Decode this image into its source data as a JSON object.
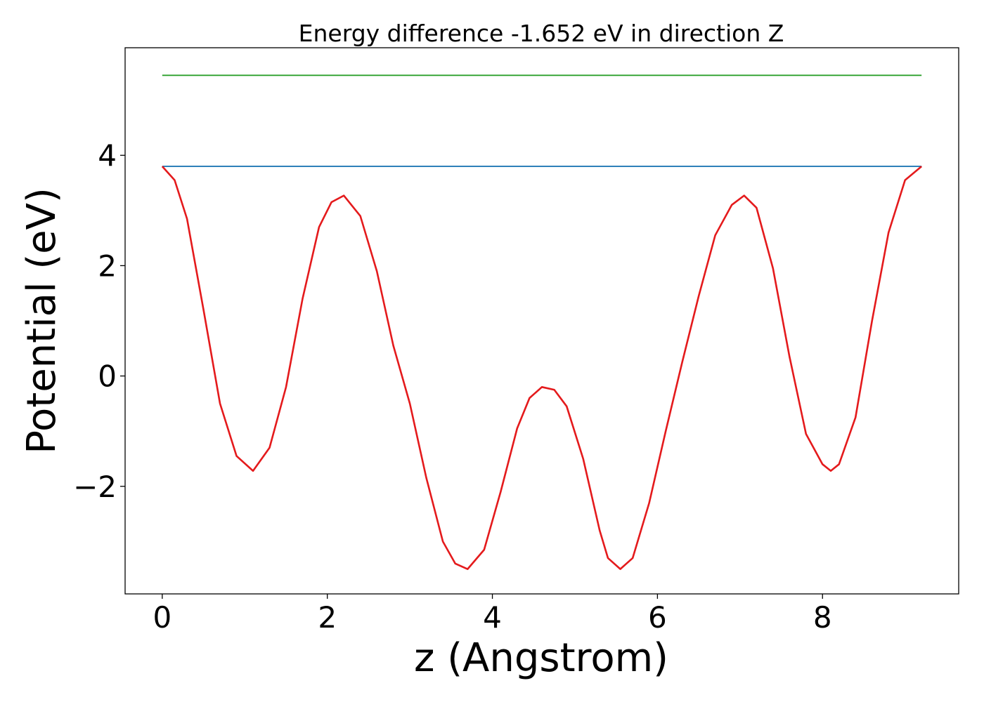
{
  "chart_data": {
    "type": "line",
    "title": "Energy difference -1.652 eV in direction Z",
    "xlabel": "z (Angstrom)",
    "ylabel": "Potential (eV)",
    "xlim": [
      -0.45,
      9.65
    ],
    "ylim": [
      -3.95,
      5.95
    ],
    "xticks": [
      0,
      2,
      4,
      6,
      8
    ],
    "xtick_labels": [
      "0",
      "2",
      "4",
      "6",
      "8"
    ],
    "yticks": [
      -2,
      0,
      2,
      4
    ],
    "ytick_labels": [
      "−2",
      "0",
      "2",
      "4"
    ],
    "grid": false,
    "legend": "none",
    "series": [
      {
        "color": "#2ca02c",
        "x": [
          0,
          9.2
        ],
        "y": [
          5.45,
          5.45
        ]
      },
      {
        "color": "#1f77b4",
        "x": [
          0,
          9.2
        ],
        "y": [
          3.8,
          3.8
        ]
      },
      {
        "color": "#e41a1c",
        "x": [
          0,
          0.15,
          0.3,
          0.5,
          0.7,
          0.9,
          1.1,
          1.3,
          1.5,
          1.7,
          1.9,
          2.05,
          2.2,
          2.4,
          2.6,
          2.8,
          3.0,
          3.2,
          3.4,
          3.55,
          3.7,
          3.9,
          4.1,
          4.3,
          4.45,
          4.6,
          4.75,
          4.9,
          5.1,
          5.3,
          5.4,
          5.55,
          5.7,
          5.9,
          6.1,
          6.3,
          6.5,
          6.7,
          6.9,
          7.05,
          7.2,
          7.4,
          7.6,
          7.8,
          8.0,
          8.1,
          8.2,
          8.4,
          8.6,
          8.8,
          9.0,
          9.2
        ],
        "y": [
          3.8,
          3.55,
          2.85,
          1.2,
          -0.5,
          -1.45,
          -1.72,
          -1.3,
          -0.2,
          1.4,
          2.7,
          3.15,
          3.27,
          2.9,
          1.9,
          0.55,
          -0.5,
          -1.85,
          -3.0,
          -3.4,
          -3.5,
          -3.15,
          -2.1,
          -0.95,
          -0.4,
          -0.2,
          -0.25,
          -0.55,
          -1.5,
          -2.8,
          -3.3,
          -3.5,
          -3.3,
          -2.3,
          -1.0,
          0.25,
          1.45,
          2.55,
          3.1,
          3.27,
          3.05,
          1.95,
          0.35,
          -1.05,
          -1.6,
          -1.72,
          -1.6,
          -0.75,
          1.0,
          2.6,
          3.55,
          3.8
        ]
      }
    ]
  }
}
